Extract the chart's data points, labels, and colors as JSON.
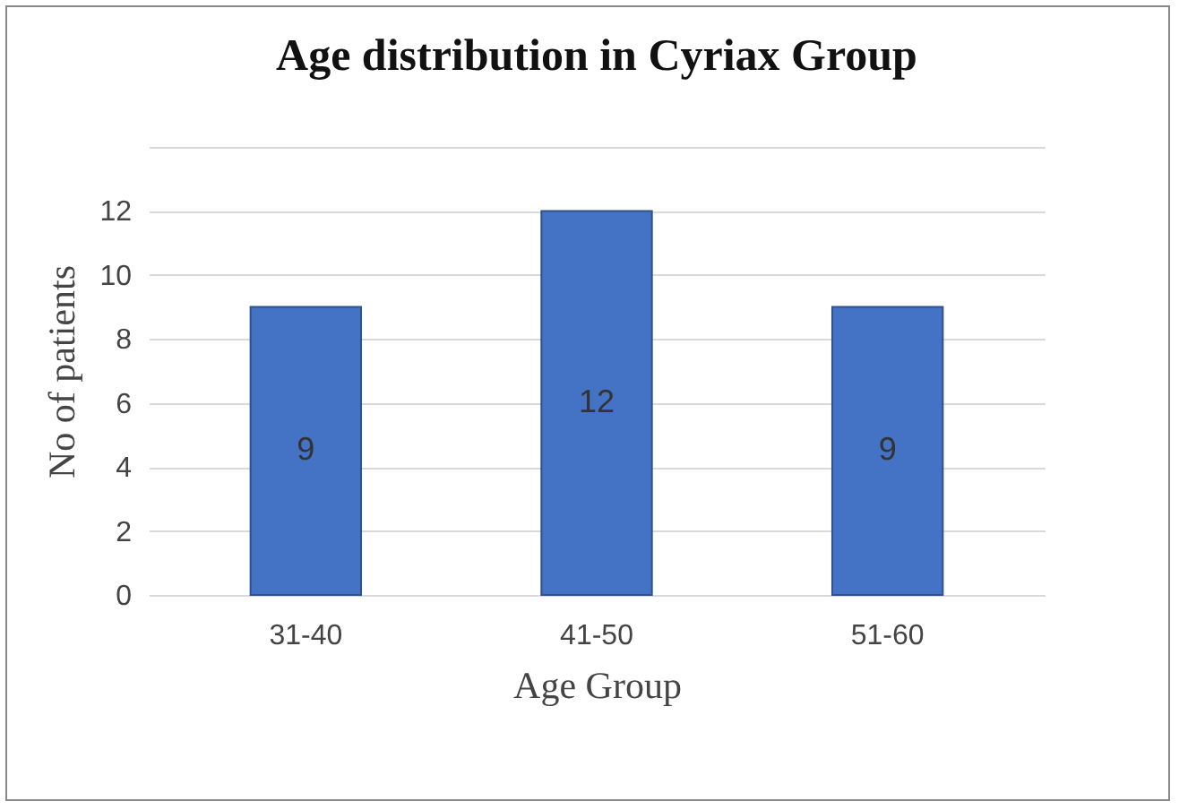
{
  "chart_data": {
    "type": "bar",
    "title": "Age distribution in Cyriax Group",
    "xlabel": "Age Group",
    "ylabel": "No of patients",
    "categories": [
      "31-40",
      "41-50",
      "51-60"
    ],
    "values": [
      9,
      12,
      9
    ],
    "color": "#4472c4",
    "ylim": [
      0,
      14
    ],
    "yticks": [
      0,
      2,
      4,
      6,
      8,
      10,
      12,
      {
        "value": 14,
        "label": null
      }
    ],
    "grid": "y",
    "data_labels": true
  }
}
